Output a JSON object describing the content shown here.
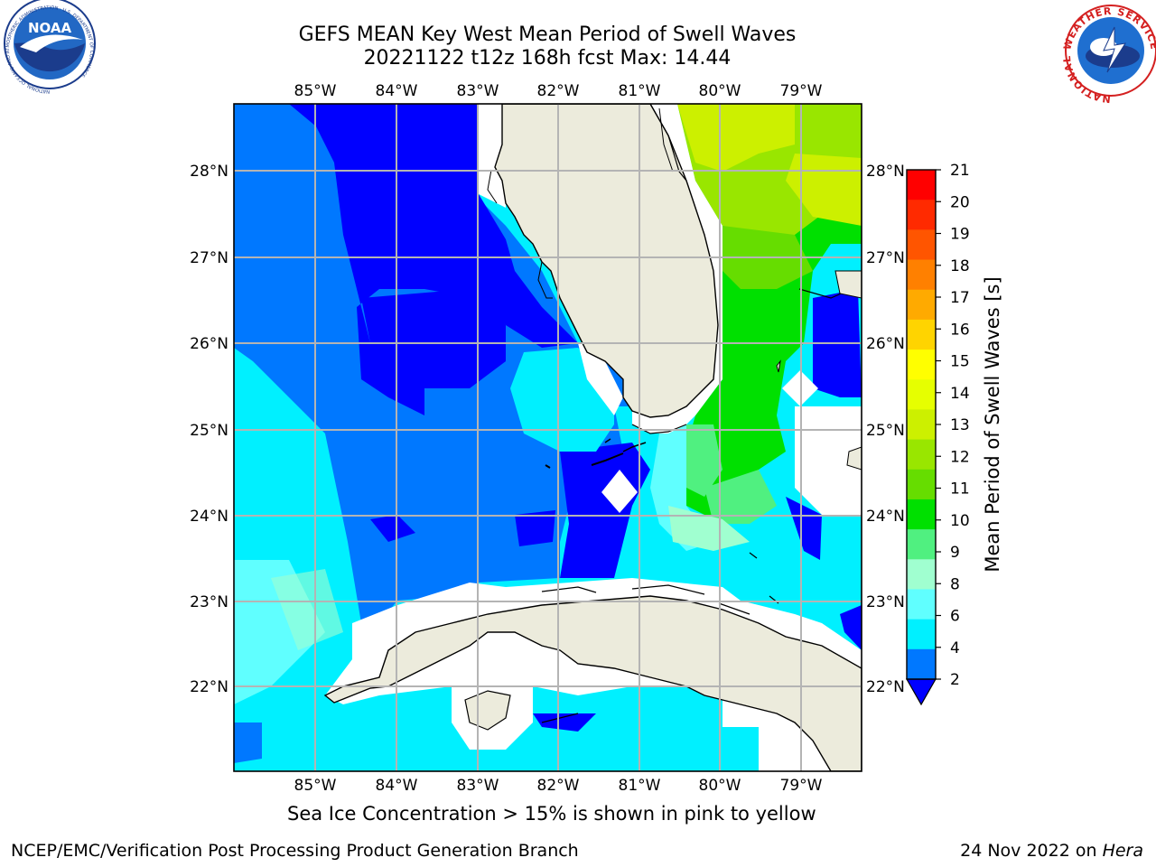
{
  "header": {
    "title_line1": "GEFS MEAN Key West Mean Period of Swell Waves",
    "title_line2": "20221122 t12z 168h fcst   Max: 14.44"
  },
  "logos": {
    "left": "noaa-logo",
    "left_text": "NOAA",
    "left_ring_text": "NATIONAL OCEANIC AND ATMOSPHERIC ADMINISTRATION · U.S. DEPARTMENT OF COMMERCE",
    "right": "nws-logo",
    "right_ring_text": "NATIONAL WEATHER SERVICE"
  },
  "map": {
    "lon_labels": [
      "85°W",
      "84°W",
      "83°W",
      "82°W",
      "81°W",
      "80°W",
      "79°W"
    ],
    "lat_labels": [
      "28°N",
      "27°N",
      "26°N",
      "25°N",
      "24°N",
      "23°N",
      "22°N"
    ],
    "colors": {
      "land": "#ecebdc",
      "coast": "#000000",
      "grid": "#b4b4b4",
      "missing": "#ffffff"
    }
  },
  "colorbar": {
    "label": "Mean Period of Swell Waves [s]",
    "ticks": [
      "21",
      "20",
      "19",
      "18",
      "17",
      "16",
      "15",
      "14",
      "13",
      "12",
      "11",
      "10",
      "9",
      "8",
      "6",
      "4",
      "2"
    ],
    "colors_top_to_bottom": [
      "#ff0000",
      "#ff2a00",
      "#ff5500",
      "#ff8000",
      "#ffaa00",
      "#ffd400",
      "#ffff00",
      "#e6ff00",
      "#ccf000",
      "#99e600",
      "#66dd00",
      "#00e000",
      "#50f080",
      "#a0ffd0",
      "#60ffff",
      "#00f0ff",
      "#0078ff"
    ],
    "under_color": "#0000ff"
  },
  "footer": {
    "ice_note": "Sea Ice Concentration > 15% is shown in pink to yellow",
    "credit": "NCEP/EMC/Verification Post Processing Product Generation Branch",
    "date_prefix": "24 Nov 2022 on ",
    "date_machine": "Hera"
  }
}
